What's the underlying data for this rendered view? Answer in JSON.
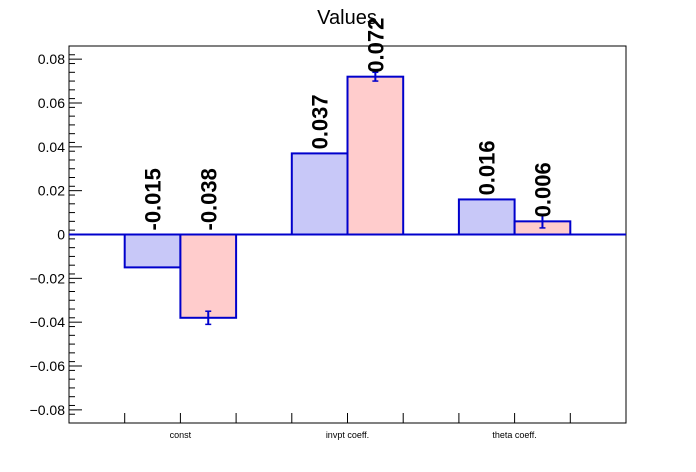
{
  "chart_data": {
    "type": "bar",
    "title": "Values",
    "xlabel": "",
    "ylabel": "",
    "categories": [
      "const",
      "invpt coeff.",
      "theta coeff."
    ],
    "series": [
      {
        "color": "#c8c8f8",
        "edge_color": "#0000cc",
        "values": [
          -0.015,
          0.037,
          0.016
        ],
        "labels": [
          "-0.015",
          "0.037",
          "0.016"
        ]
      },
      {
        "color": "#ffcccc",
        "edge_color": "#0000cc",
        "values": [
          -0.038,
          0.072,
          0.006
        ],
        "errors": [
          0.003,
          0.002,
          0.003
        ],
        "labels": [
          "-0.038",
          "0.072",
          "0.006"
        ]
      }
    ],
    "ylim": [
      -0.086,
      0.086
    ],
    "yticks": [
      -0.08,
      -0.06,
      -0.04,
      -0.02,
      0,
      0.02,
      0.04,
      0.06,
      0.08
    ],
    "ytick_labels": [
      "−0.08",
      "−0.06",
      "−0.04",
      "−0.02",
      "0",
      "0.02",
      "0.04",
      "0.06",
      "0.08"
    ],
    "grid": false,
    "zero_line_color": "#0000cc"
  }
}
